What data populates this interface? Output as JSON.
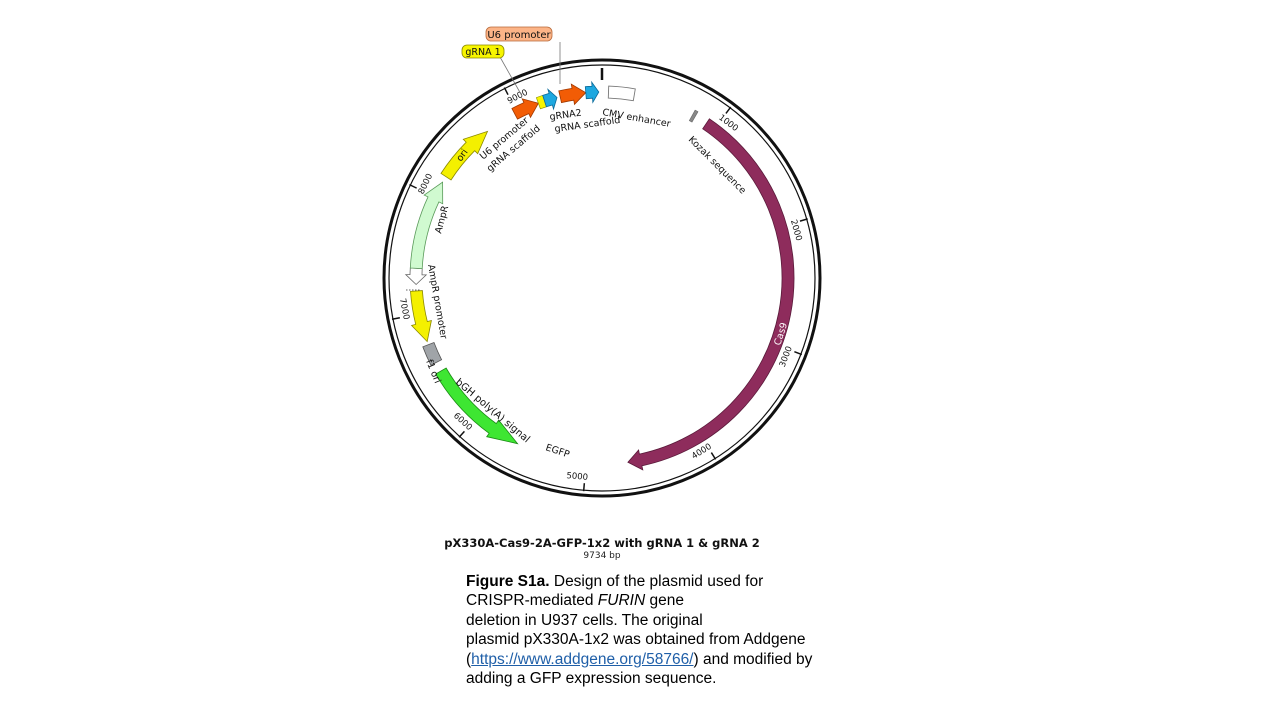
{
  "plasmid": {
    "name": "pX330A-Cas9-2A-GFP-1x2 with gRNA 1 & gRNA 2",
    "size_label": "9734 bp",
    "total_bp": 9734
  },
  "ticks": [
    {
      "bp": 1000,
      "label": "1000"
    },
    {
      "bp": 2000,
      "label": "2000"
    },
    {
      "bp": 3000,
      "label": "3000"
    },
    {
      "bp": 4000,
      "label": "4000"
    },
    {
      "bp": 5000,
      "label": "5000"
    },
    {
      "bp": 6000,
      "label": "6000"
    },
    {
      "bp": 7000,
      "label": "7000"
    },
    {
      "bp": 8000,
      "label": "8000"
    },
    {
      "bp": 9000,
      "label": "9000"
    }
  ],
  "features": {
    "cas9": {
      "label": "Cas9",
      "color": "#8e2c5c"
    },
    "egfp": {
      "label": "EGFP",
      "color": "#3ee632"
    },
    "bgh": {
      "label": "bGH poly(A) signal",
      "color": "#a0a4a8"
    },
    "f1ori": {
      "label": "f1 ori",
      "color": "#f4f000"
    },
    "amprpromoter": {
      "label": "AmpR promoter",
      "color": "#ffffff"
    },
    "ampr": {
      "label": "AmpR",
      "color": "#d0fad0"
    },
    "ori": {
      "label": "ori",
      "color": "#f4f000"
    },
    "u6a": {
      "label": "U6 promoter",
      "color": "#f25c05"
    },
    "grna_scaffold_a": {
      "label": "gRNA scaffold",
      "color": "#1ea8e0"
    },
    "u6b": {
      "label": "gRNA2",
      "color": "#f25c05"
    },
    "grna_scaffold_b": {
      "label": "gRNA scaffold",
      "color": "#1ea8e0"
    },
    "cmv": {
      "label": "CMV enhancer",
      "color": "#ffffff"
    },
    "kozak": {
      "label": "Kozak sequence",
      "color": "#888888"
    }
  },
  "callouts": {
    "u6": {
      "label": "U6 promoter",
      "color": "#fcb487"
    },
    "grna1": {
      "label": "gRNA 1",
      "color": "#f7f500"
    }
  },
  "caption": {
    "line1_bold": "Figure S1a.",
    "line1_rest": " Design of the plasmid used for",
    "line2_a": "CRISPR-mediated ",
    "line2_italic": "FURIN",
    "line2_b": " gene",
    "line3": "deletion in U937 cells. The original",
    "line4": "plasmid pX330A-1x2 was obtained from Addgene",
    "line5_open": "(",
    "link": "https://www.addgene.org/58766/",
    "line5_close": ")  and modified by",
    "line6": "adding a GFP expression sequence."
  }
}
